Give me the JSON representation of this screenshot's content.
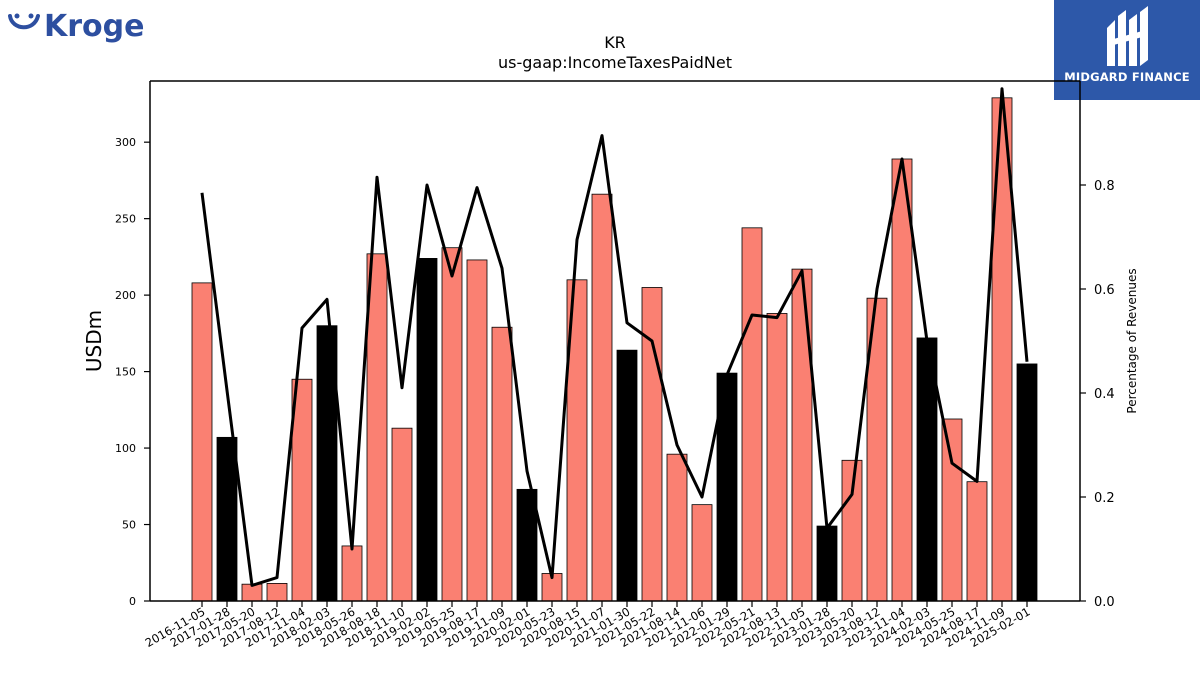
{
  "logos": {
    "kroger_wordmark": "Kroger",
    "midgard_wordmark": "MIDGARD FINANCE"
  },
  "colors": {
    "bar_regular": "#fa8072",
    "bar_highlight": "#000000",
    "line": "#000000",
    "kroger_blue": "#2d4fa0",
    "midgard_bg": "#2d58a9"
  },
  "chart_data": {
    "type": "bar",
    "title": "KR",
    "subtitle": "us-gaap:IncomeTaxesPaidNet",
    "ylabel": "USDm",
    "y2label": "Percentage of Revenues",
    "ylim": [
      0,
      340
    ],
    "y2lim": [
      0,
      1.0
    ],
    "yticks": [
      "0",
      "50",
      "100",
      "150",
      "200",
      "250",
      "300"
    ],
    "y2ticks": [
      "0.0",
      "0.2",
      "0.4",
      "0.6",
      "0.8"
    ],
    "categories": [
      "2016-11-05",
      "2017-01-28",
      "2017-05-20",
      "2017-08-12",
      "2017-11-04",
      "2018-02-03",
      "2018-05-26",
      "2018-08-18",
      "2018-11-10",
      "2019-02-02",
      "2019-05-25",
      "2019-08-17",
      "2019-11-09",
      "2020-02-01",
      "2020-05-23",
      "2020-08-15",
      "2020-11-07",
      "2021-01-30",
      "2021-05-22",
      "2021-08-14",
      "2021-11-06",
      "2022-01-29",
      "2022-05-21",
      "2022-08-13",
      "2022-11-05",
      "2023-01-28",
      "2023-05-20",
      "2023-08-12",
      "2023-11-04",
      "2024-02-03",
      "2024-05-25",
      "2024-08-17",
      "2024-11-09",
      "2025-02-01"
    ],
    "series": [
      {
        "type": "bar",
        "values": [
          208,
          107,
          11,
          11.5,
          145,
          180,
          36,
          227,
          113,
          224,
          231,
          223,
          179,
          73,
          18,
          210,
          266,
          164,
          205,
          96,
          63,
          149,
          244,
          188,
          217,
          49,
          92,
          198,
          289,
          172,
          119,
          78,
          329,
          155
        ],
        "highlight": [
          false,
          true,
          false,
          false,
          false,
          true,
          false,
          false,
          false,
          true,
          false,
          false,
          false,
          true,
          false,
          false,
          false,
          true,
          false,
          false,
          false,
          true,
          false,
          false,
          false,
          true,
          false,
          false,
          false,
          true,
          false,
          false,
          false,
          true
        ]
      },
      {
        "type": "line",
        "axis": "secondary",
        "values": [
          0.785,
          0.405,
          0.03,
          0.045,
          0.525,
          0.58,
          0.1,
          0.815,
          0.41,
          0.8,
          0.625,
          0.795,
          0.64,
          0.25,
          0.045,
          0.695,
          0.895,
          0.535,
          0.5,
          0.3,
          0.2,
          0.435,
          0.55,
          0.545,
          0.635,
          0.14,
          0.205,
          0.6,
          0.85,
          0.5,
          0.265,
          0.23,
          0.985,
          0.46
        ]
      }
    ],
    "grid": false,
    "legend": "none"
  }
}
